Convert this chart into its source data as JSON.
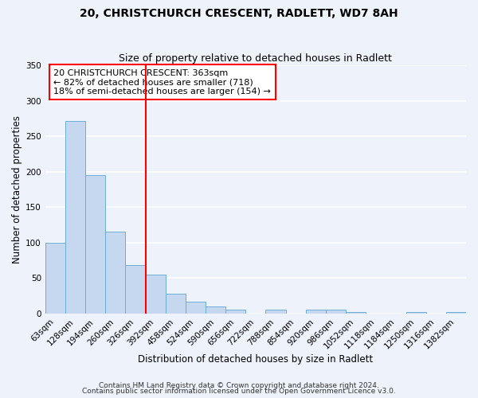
{
  "title": "20, CHRISTCHURCH CRESCENT, RADLETT, WD7 8AH",
  "subtitle": "Size of property relative to detached houses in Radlett",
  "xlabel": "Distribution of detached houses by size in Radlett",
  "ylabel": "Number of detached properties",
  "bar_labels": [
    "63sqm",
    "128sqm",
    "194sqm",
    "260sqm",
    "326sqm",
    "392sqm",
    "458sqm",
    "524sqm",
    "590sqm",
    "656sqm",
    "722sqm",
    "788sqm",
    "854sqm",
    "920sqm",
    "986sqm",
    "1052sqm",
    "1118sqm",
    "1184sqm",
    "1250sqm",
    "1316sqm",
    "1382sqm"
  ],
  "bar_values": [
    100,
    272,
    195,
    116,
    68,
    55,
    28,
    17,
    10,
    5,
    0,
    5,
    0,
    5,
    5,
    2,
    0,
    0,
    2,
    0,
    2
  ],
  "bar_color": "#c5d8f0",
  "bar_edge_color": "#6baed6",
  "vline_x": 4.5,
  "vline_color": "red",
  "annotation_title": "20 CHRISTCHURCH CRESCENT: 363sqm",
  "annotation_line1": "← 82% of detached houses are smaller (718)",
  "annotation_line2": "18% of semi-detached houses are larger (154) →",
  "annotation_box_color": "white",
  "annotation_box_edge": "red",
  "ylim": [
    0,
    350
  ],
  "yticks": [
    0,
    50,
    100,
    150,
    200,
    250,
    300,
    350
  ],
  "footnote1": "Contains HM Land Registry data © Crown copyright and database right 2024.",
  "footnote2": "Contains public sector information licensed under the Open Government Licence v3.0.",
  "background_color": "#edf2fb",
  "grid_color": "white",
  "title_fontsize": 10,
  "subtitle_fontsize": 9,
  "axis_label_fontsize": 8.5,
  "tick_fontsize": 7.5,
  "annotation_fontsize": 8,
  "footnote_fontsize": 6.5
}
